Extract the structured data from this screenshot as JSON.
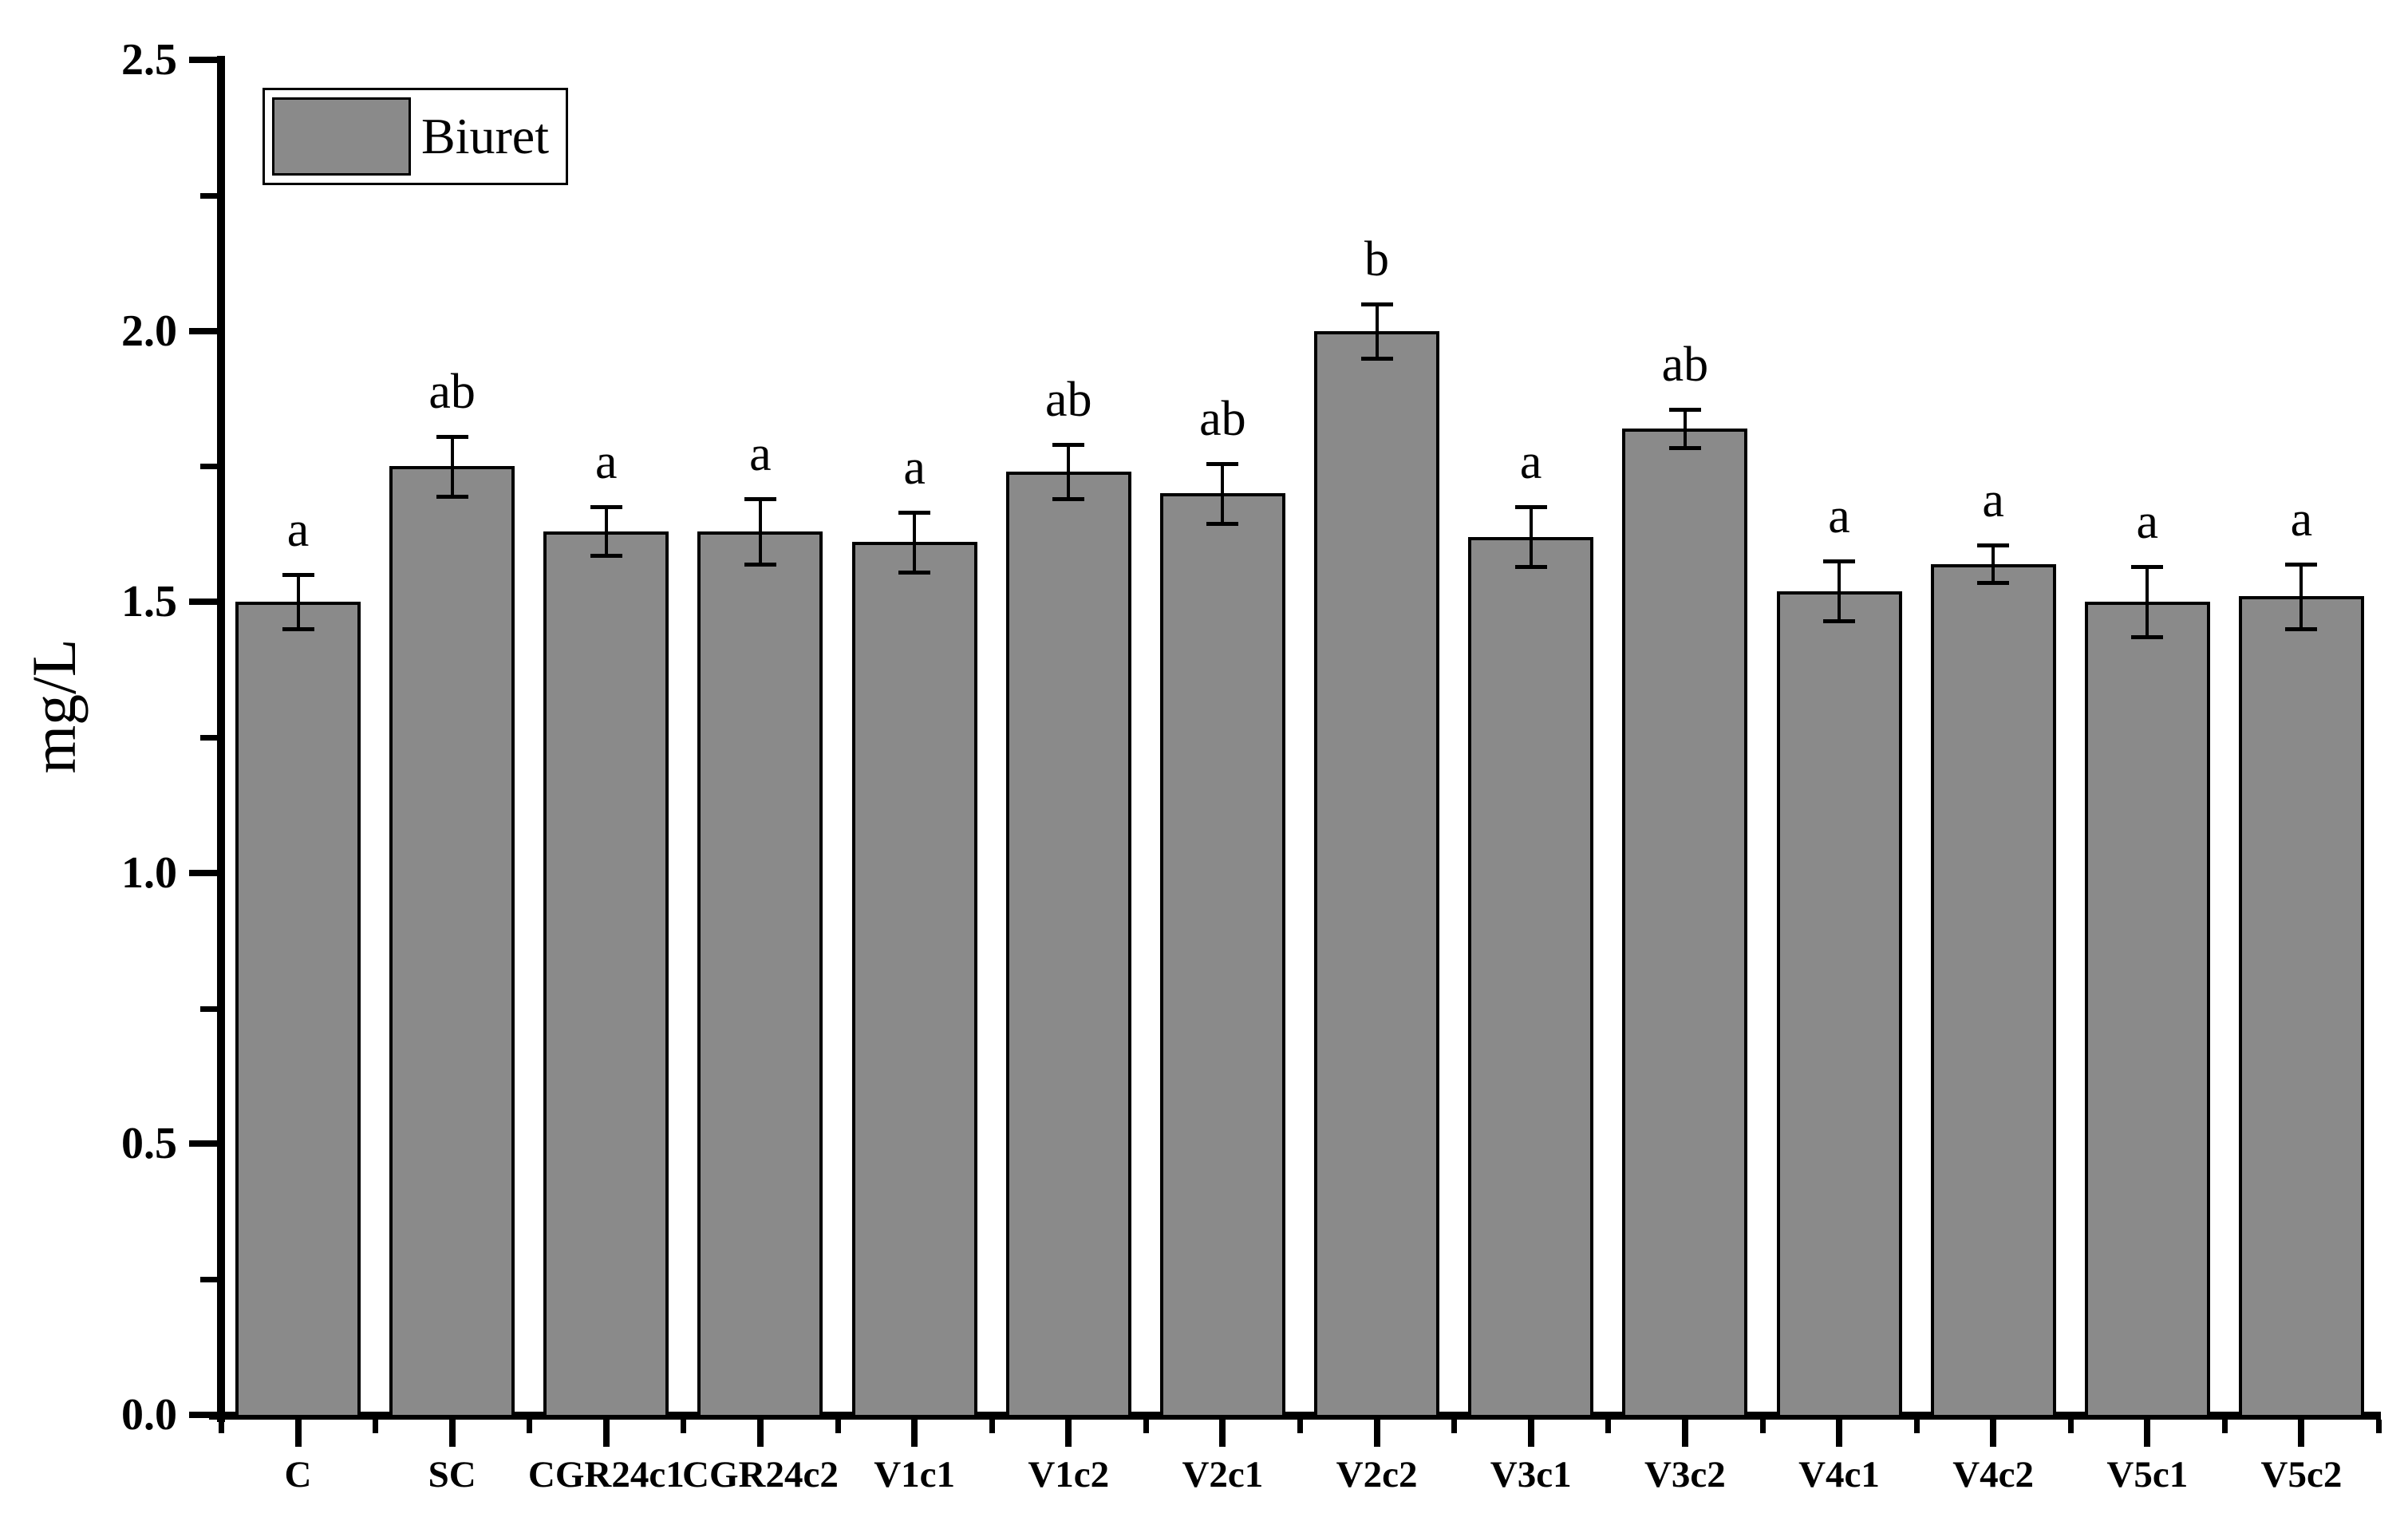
{
  "chart_data": {
    "type": "bar",
    "title": "",
    "xlabel": "",
    "ylabel": "mg/L",
    "ylim": [
      0.0,
      2.5
    ],
    "grid": false,
    "background_color": "#ffffff",
    "bar_color": "#8a8a8a",
    "bar_border_color": "#000000",
    "legend": {
      "label": "Biuret",
      "position": "top-left"
    },
    "yticks_major": [
      0.0,
      0.5,
      1.0,
      1.5,
      2.0,
      2.5
    ],
    "ytick_labels": [
      "0.0",
      "0.5",
      "1.0",
      "1.5",
      "2.0",
      "2.5"
    ],
    "yticks_minor": [
      0.25,
      0.75,
      1.25,
      1.75,
      2.25
    ],
    "categories": [
      "C",
      "SC",
      "CGR24c1",
      "CGR24c2",
      "V1c1",
      "V1c2",
      "V2c1",
      "V2c2",
      "V3c1",
      "V3c2",
      "V4c1",
      "V4c2",
      "V5c1",
      "V5c2"
    ],
    "series": [
      {
        "name": "Biuret",
        "values": [
          1.5,
          1.75,
          1.63,
          1.63,
          1.61,
          1.74,
          1.7,
          2.0,
          1.62,
          1.82,
          1.52,
          1.57,
          1.5,
          1.51
        ],
        "errors": [
          0.05,
          0.055,
          0.045,
          0.06,
          0.055,
          0.05,
          0.055,
          0.05,
          0.055,
          0.035,
          0.055,
          0.035,
          0.065,
          0.06
        ],
        "sig_letters": [
          "a",
          "ab",
          "a",
          "a",
          "a",
          "ab",
          "ab",
          "b",
          "a",
          "ab",
          "a",
          "a",
          "a",
          "a"
        ]
      }
    ]
  }
}
